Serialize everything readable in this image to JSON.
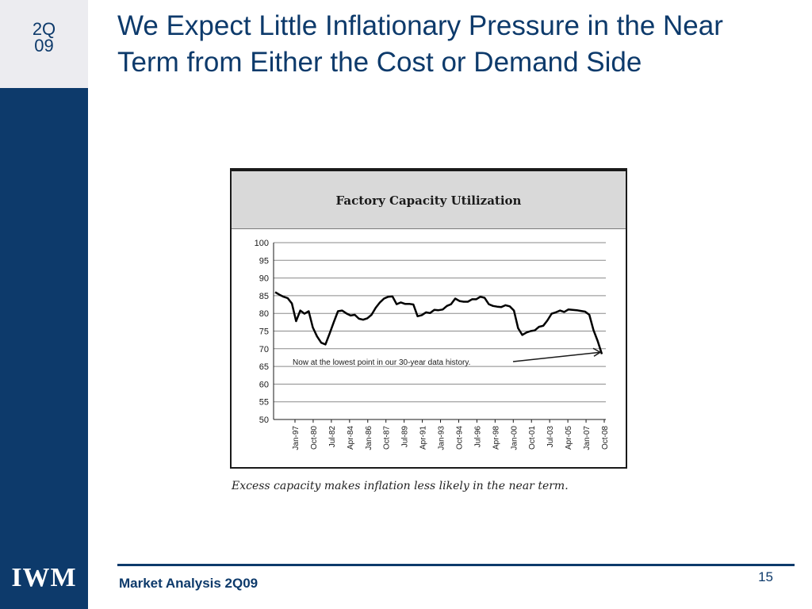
{
  "slide": {
    "quarter_line1": "2Q",
    "quarter_line2": "09",
    "title": "We Expect Little Inflationary Pressure in the Near Term from Either the Cost or Demand Side",
    "caption": "Excess capacity makes inflation less likely in the near term.",
    "footer_text": "Market Analysis 2Q09",
    "page_number": "15",
    "logo": "IWM"
  },
  "colors": {
    "brand_navy": "#0d3a6b",
    "sidebar_light": "#ececf0",
    "chart_header_gray": "#d9d9d9",
    "line": "#000000"
  },
  "chart_data": {
    "type": "line",
    "title": "Factory Capacity Utilization",
    "xlabel": "",
    "ylabel": "",
    "ylim": [
      50,
      100
    ],
    "yticks": [
      50,
      55,
      60,
      65,
      70,
      75,
      80,
      85,
      90,
      95,
      100
    ],
    "grid": true,
    "xtick_labels": [
      "Jan-97",
      "Oct-80",
      "Jul-82",
      "Apr-84",
      "Jan-86",
      "Oct-87",
      "Jul-89",
      "Apr-91",
      "Jan-93",
      "Oct-94",
      "Jul-96",
      "Apr-98",
      "Jan-00",
      "Oct-01",
      "Jul-03",
      "Apr-05",
      "Jan-07",
      "Oct-08"
    ],
    "annotation": "Now at the lowest point in our 30-year data history.",
    "series": [
      {
        "values": [
          86,
          85.3,
          84.7,
          84.3,
          82.8,
          77.8,
          80.8,
          79.9,
          80.6,
          76,
          73.5,
          71.7,
          71.2,
          74.3,
          77.5,
          80.6,
          80.8,
          80,
          79.4,
          79.6,
          78.5,
          78.2,
          78.6,
          79.6,
          81.6,
          83.1,
          84.2,
          84.7,
          84.8,
          82.6,
          83.1,
          82.7,
          82.7,
          82.5,
          79.2,
          79.5,
          80.3,
          80.1,
          81,
          80.9,
          81.1,
          82.1,
          82.6,
          84.2,
          83.5,
          83.3,
          83.3,
          84,
          84,
          84.7,
          84.4,
          82.6,
          82.1,
          81.9,
          81.8,
          82.3,
          82,
          80.8,
          75.8,
          73.9,
          74.6,
          75,
          75.2,
          76.2,
          76.5,
          78,
          79.9,
          80.3,
          80.8,
          80.4,
          81.1,
          81,
          80.9,
          80.7,
          80.5,
          79.6,
          75.3,
          72.2,
          68.5
        ]
      }
    ]
  }
}
